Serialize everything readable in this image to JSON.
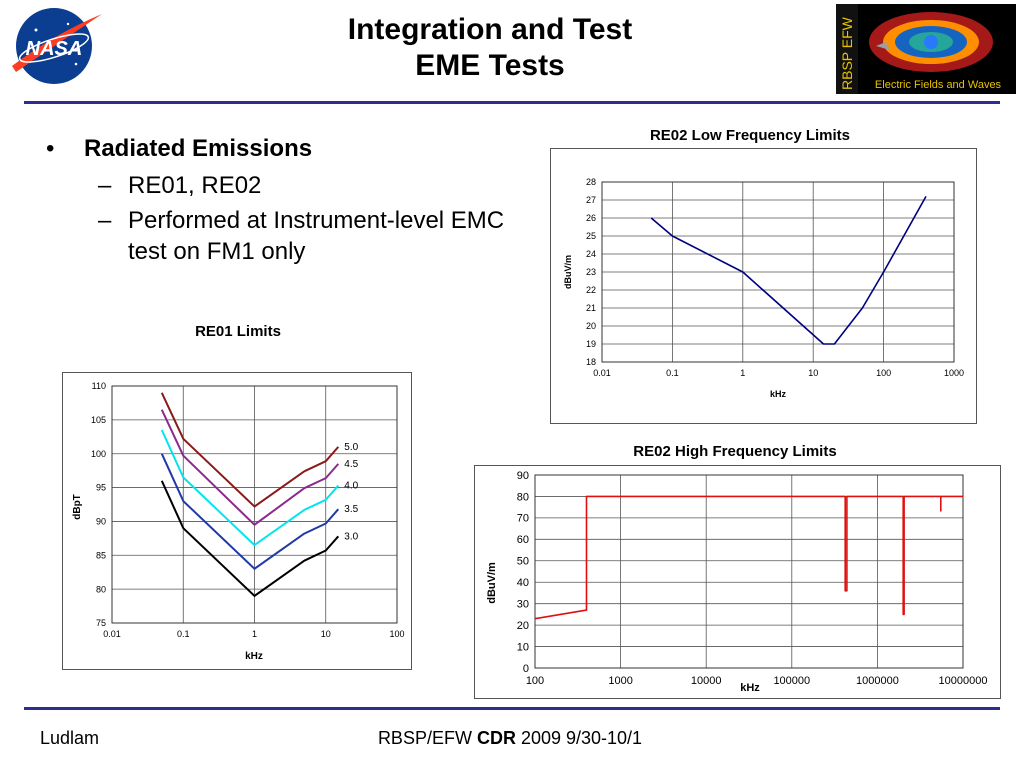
{
  "header": {
    "title_line1": "Integration and Test",
    "title_line2": "EME Tests",
    "nasa_logo_text": "NASA",
    "efw_logo_vertical_text": "RBSP EFW",
    "efw_logo_caption": "Electric Fields and Waves"
  },
  "bullets": {
    "main": "Radiated Emissions",
    "sub1": "RE01, RE02",
    "sub2_line1": "Performed at Instrument-level EMC",
    "sub2_line2": "test on FM1 only"
  },
  "footer": {
    "left": "Ludlam",
    "center_prefix": "RBSP/EFW ",
    "center_bold": "CDR",
    "center_suffix": " 2009 9/30-10/1"
  },
  "colors": {
    "rule": "#2e2e8c",
    "re01_series": [
      "#8b1a1a",
      "#8b2a8b",
      "#00e5ee",
      "#1f3aa6",
      "#000000"
    ],
    "re02_low": "#000080",
    "re02_high": "#e01010"
  },
  "chart_data": [
    {
      "type": "line",
      "title": "RE01 Limits",
      "xlabel": "kHz",
      "ylabel": "dBpT",
      "xscale": "log",
      "xlim": [
        0.01,
        100
      ],
      "ylim": [
        75,
        110
      ],
      "xticks": [
        "0.01",
        "0.1",
        "1",
        "10",
        "100"
      ],
      "yticks": [
        "75",
        "80",
        "85",
        "90",
        "95",
        "100",
        "105",
        "110"
      ],
      "grid": true,
      "series": [
        {
          "name": "5.0",
          "x": [
            0.05,
            0.1,
            1,
            5,
            10,
            15
          ],
          "y": [
            109,
            102.2,
            92.2,
            97.4,
            98.9,
            101
          ]
        },
        {
          "name": "4.5",
          "x": [
            0.05,
            0.1,
            1,
            5,
            10,
            15
          ],
          "y": [
            106.5,
            99.7,
            89.5,
            94.9,
            96.4,
            98.5
          ]
        },
        {
          "name": "4.0",
          "x": [
            0.05,
            0.1,
            1,
            5,
            10,
            15
          ],
          "y": [
            103.5,
            96.5,
            86.5,
            91.7,
            93.2,
            95.3
          ]
        },
        {
          "name": "3.5",
          "x": [
            0.05,
            0.1,
            1,
            5,
            10,
            15
          ],
          "y": [
            100,
            93,
            83,
            88.2,
            89.7,
            91.8
          ]
        },
        {
          "name": "3.0",
          "x": [
            0.05,
            0.1,
            1,
            5,
            10,
            15
          ],
          "y": [
            96,
            89,
            79,
            84.2,
            85.7,
            87.8
          ]
        }
      ]
    },
    {
      "type": "line",
      "title": "RE02 Low Frequency  Limits",
      "xlabel": "kHz",
      "ylabel": "dBuV/m",
      "xscale": "log",
      "xlim": [
        0.01,
        1000
      ],
      "ylim": [
        18,
        28
      ],
      "xticks": [
        "0.01",
        "0.1",
        "1",
        "10",
        "100",
        "1000"
      ],
      "yticks": [
        "18",
        "19",
        "20",
        "21",
        "22",
        "23",
        "24",
        "25",
        "26",
        "27",
        "28"
      ],
      "grid": true,
      "series": [
        {
          "x": [
            0.05,
            0.1,
            1,
            14,
            20,
            50,
            100,
            400
          ],
          "y": [
            26,
            25,
            23,
            19,
            19,
            21,
            23,
            27.2
          ]
        }
      ]
    },
    {
      "type": "line",
      "title": "RE02 High Frequency  Limits",
      "xlabel": "kHz",
      "ylabel": "dBuV/m",
      "xscale": "log",
      "xlim": [
        100,
        10000000
      ],
      "ylim": [
        0,
        90
      ],
      "xticks": [
        "100",
        "1000",
        "10000",
        "100000",
        "1000000",
        "10000000"
      ],
      "yticks": [
        "0",
        "10",
        "20",
        "30",
        "40",
        "50",
        "60",
        "70",
        "80",
        "90"
      ],
      "grid": true,
      "series": [
        {
          "x": [
            100,
            400,
            400,
            420000,
            420000,
            440000,
            440000,
            2000000,
            2000000,
            2050000,
            2050000,
            10000000
          ],
          "y": [
            23,
            27,
            80,
            80,
            36,
            36,
            80,
            80,
            25,
            25,
            80,
            80
          ]
        },
        {
          "x": [
            5500000,
            5500000
          ],
          "y": [
            73,
            80
          ]
        }
      ]
    }
  ]
}
